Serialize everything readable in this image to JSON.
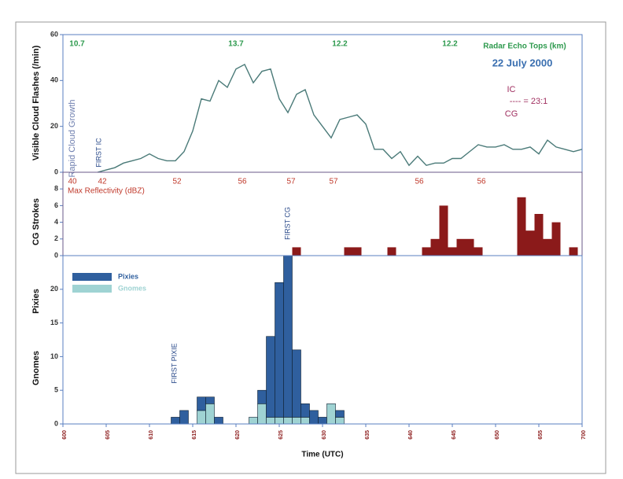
{
  "chart_data": [
    {
      "type": "line",
      "title": "22 July 2000",
      "ylabel": "Visible Cloud Flashes (/min)",
      "xlim": [
        0,
        60
      ],
      "ylim": [
        0,
        60
      ],
      "yticks": [
        0,
        20,
        40,
        60
      ],
      "color": "#4a7a78",
      "x": [
        4,
        5,
        6,
        7,
        8,
        9,
        10,
        11,
        12,
        13,
        14,
        15,
        16,
        17,
        18,
        19,
        20,
        21,
        22,
        23,
        24,
        25,
        26,
        27,
        28,
        29,
        30,
        31,
        32,
        33,
        34,
        35,
        36,
        37,
        38,
        39,
        40,
        41,
        42,
        43,
        44,
        45,
        46,
        47,
        48,
        49,
        50,
        51,
        52,
        53,
        54,
        55,
        56,
        57,
        58,
        59,
        60
      ],
      "values": [
        0,
        1,
        2,
        4,
        5,
        6,
        8,
        6,
        5,
        5,
        9,
        18,
        32,
        31,
        40,
        37,
        45,
        47,
        39,
        44,
        45,
        32,
        26,
        34,
        36,
        25,
        20,
        15,
        23,
        24,
        25,
        21,
        10,
        10,
        6,
        9,
        3,
        7,
        3,
        4,
        4,
        6,
        6,
        9,
        12,
        11,
        11,
        12,
        10,
        10,
        11,
        8,
        14,
        11,
        10,
        9,
        10
      ],
      "radar_echo_tops": [
        10.7,
        13.7,
        12.2,
        12.2
      ],
      "radar_label": "Radar Echo Tops (km)",
      "ratio_top": "IC",
      "ratio_mid": "---- = 23:1",
      "ratio_bottom": "CG",
      "growth_note": "Rapid Cloud Growth",
      "first_ic": "FIRST IC"
    },
    {
      "type": "bar",
      "ylabel": "CG Strokes",
      "xlim": [
        0,
        60
      ],
      "ylim": [
        0,
        10
      ],
      "yticks": [
        0,
        2,
        4,
        6,
        8
      ],
      "color": "#8b1a1a",
      "x": [
        27,
        33,
        34,
        38,
        42,
        43,
        44,
        45,
        46,
        47,
        48,
        53,
        54,
        55,
        56,
        57,
        59
      ],
      "values": [
        1,
        1,
        1,
        1,
        1,
        2,
        6,
        1,
        2,
        2,
        1,
        7,
        3,
        5,
        2,
        4,
        1
      ],
      "reflectivity": [
        40,
        42,
        52,
        56,
        57,
        57,
        56,
        56
      ],
      "reflectivity_label": "Max Reflectivity (dBZ)",
      "first_cg": "FIRST CG"
    },
    {
      "type": "stacked_bar",
      "ylabels": [
        "Pixies",
        "Gnomes"
      ],
      "xlabel": "Time (UTC)",
      "xlim": [
        0,
        60
      ],
      "ylim": [
        0,
        25
      ],
      "yticks": [
        0,
        5,
        10,
        15,
        20
      ],
      "xticks": [
        {
          "value": 0,
          "label": "600"
        },
        {
          "value": 5,
          "label": "605"
        },
        {
          "value": 10,
          "label": "610"
        },
        {
          "value": 15,
          "label": "615"
        },
        {
          "value": 20,
          "label": "620"
        },
        {
          "value": 25,
          "label": "625"
        },
        {
          "value": 30,
          "label": "630"
        },
        {
          "value": 35,
          "label": "635"
        },
        {
          "value": 40,
          "label": "640"
        },
        {
          "value": 45,
          "label": "645"
        },
        {
          "value": 50,
          "label": "650"
        },
        {
          "value": 55,
          "label": "655"
        },
        {
          "value": 60,
          "label": "700"
        }
      ],
      "x": [
        13,
        14,
        16,
        17,
        18,
        22,
        23,
        24,
        25,
        26,
        27,
        28,
        29,
        30,
        31,
        32
      ],
      "series": [
        {
          "name": "Gnomes",
          "color": "#9fd3d3",
          "values": [
            0,
            0,
            2,
            3,
            0,
            1,
            3,
            1,
            1,
            1,
            1,
            1,
            0,
            0,
            3,
            1
          ]
        },
        {
          "name": "Pixies",
          "color": "#2f5f9e",
          "values": [
            1,
            2,
            2,
            1,
            1,
            0,
            2,
            12,
            20,
            24,
            10,
            2,
            2,
            1,
            0,
            1
          ]
        }
      ],
      "first_pixie": "FIRST PIXIE"
    }
  ]
}
